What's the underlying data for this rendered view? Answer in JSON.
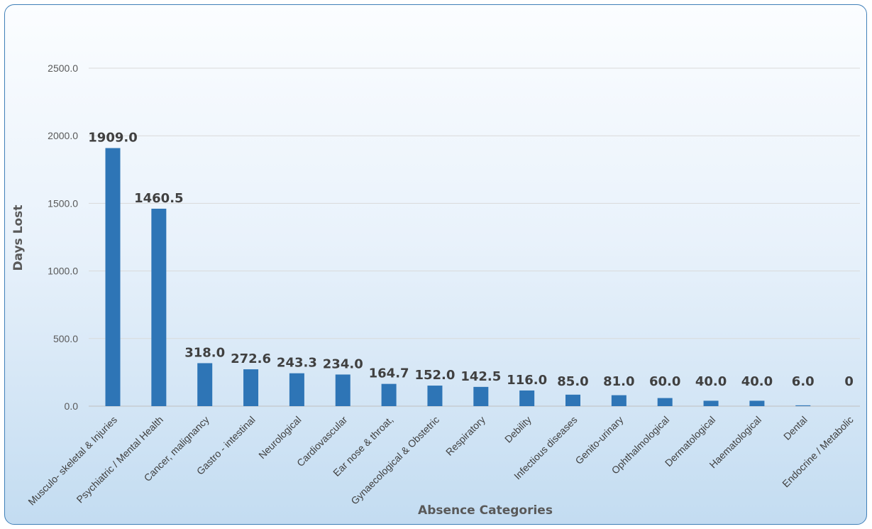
{
  "chart_data": {
    "type": "bar",
    "xlabel": "Absence Categories",
    "ylabel": "Days Lost",
    "ylim": [
      0,
      2500
    ],
    "yticks": [
      "0.0",
      "500.0",
      "1000.0",
      "1500.0",
      "2000.0",
      "2500.0"
    ],
    "grid": true,
    "legend": "none",
    "bar_color": "#2e75b6",
    "categories": [
      "Musculo- skeletal & Injuries",
      "Psychiatric / Mental Health",
      "Cancer, malignancy",
      "Gastro - intestinal",
      "Neurological",
      "Cardiovascular",
      "Ear nose & throat,",
      "Gynaecological & Obstetric",
      "Respiratory",
      "Debility",
      "Infectious diseases",
      "Genito-urinary",
      "Ophthalmological",
      "Dermatological",
      "Haematological",
      "Dental",
      "Endocrine / Metabolic"
    ],
    "values": [
      1909.0,
      1460.5,
      318.0,
      272.6,
      243.3,
      234.0,
      164.7,
      152.0,
      142.5,
      116.0,
      85.0,
      81.0,
      60.0,
      40.0,
      40.0,
      6.0,
      0
    ],
    "data_labels": [
      "1909.0",
      "1460.5",
      "318.0",
      "272.6",
      "243.3",
      "234.0",
      "164.7",
      "152.0",
      "142.5",
      "116.0",
      "85.0",
      "81.0",
      "60.0",
      "40.0",
      "40.0",
      "6.0",
      "0"
    ]
  }
}
